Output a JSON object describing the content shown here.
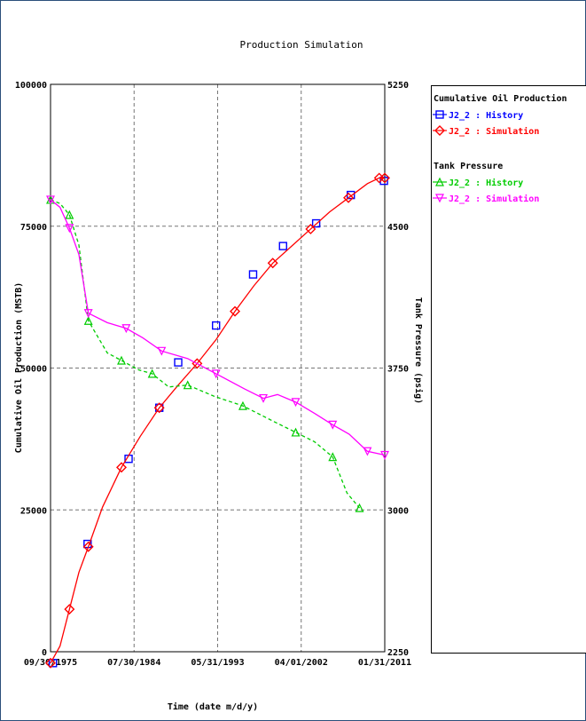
{
  "chart_data": {
    "type": "line",
    "title": "Production Simulation",
    "xlabel": "Time (date m/d/y)",
    "ylabel_left": "Cumulative Oil Production (MSTB)",
    "ylabel_right": "Tank Pressure (psig)",
    "x_range": [
      "1975-09-30",
      "2011-01-31"
    ],
    "x_ticks": [
      "09/30/1975",
      "07/30/1984",
      "05/31/1993",
      "04/01/2002",
      "01/31/2011"
    ],
    "y_left_range": [
      0,
      100000
    ],
    "y_left_ticks": [
      "0",
      "25000",
      "50000",
      "75000",
      "100000"
    ],
    "y_right_range": [
      2250,
      5250
    ],
    "y_right_ticks": [
      "2250",
      "3000",
      "3750",
      "4500",
      "5250"
    ],
    "grid": true,
    "legend": {
      "groups": [
        {
          "title": "Cumulative Oil Production",
          "entries": [
            {
              "label": "J2_2 : History",
              "color": "#0000ff",
              "marker": "square"
            },
            {
              "label": "J2_2 : Simulation",
              "color": "#ff0000",
              "marker": "diamond"
            }
          ]
        },
        {
          "title": "Tank Pressure",
          "entries": [
            {
              "label": "J2_2 : History",
              "color": "#00cc00",
              "marker": "triangle-up"
            },
            {
              "label": "J2_2 : Simulation",
              "color": "#ff00ff",
              "marker": "triangle-down"
            }
          ]
        }
      ]
    },
    "series": [
      {
        "name": "Cumulative Oil Production - J2_2 : History",
        "axis": "left",
        "color": "#0000ff",
        "marker": "square",
        "style": "markers",
        "x": [
          "1975-12-31",
          "1979-08-31",
          "1983-12-31",
          "1987-03-31",
          "1989-03-31",
          "1993-03-31",
          "1997-02-28",
          "2000-04-30",
          "2003-10-31",
          "2007-06-30",
          "2010-12-31"
        ],
        "y": [
          -2000,
          19000,
          34000,
          43000,
          51000,
          57500,
          66500,
          71500,
          75500,
          80500,
          83000
        ]
      },
      {
        "name": "Cumulative Oil Production - J2_2 : Simulation",
        "axis": "left",
        "color": "#ff0000",
        "marker": "diamond",
        "style": "line",
        "x": [
          "1975-09-30",
          "1976-09-30",
          "1977-09-30",
          "1978-09-30",
          "1979-09-30",
          "1981-03-31",
          "1983-03-31",
          "1985-03-31",
          "1987-03-31",
          "1989-03-31",
          "1991-03-31",
          "1993-03-31",
          "1995-03-31",
          "1997-03-31",
          "1999-03-31",
          "2001-03-31",
          "2003-03-31",
          "2005-03-31",
          "2007-03-31",
          "2009-03-31",
          "2010-06-30",
          "2011-01-31"
        ],
        "y": [
          -2000,
          1000,
          7500,
          14000,
          18500,
          25500,
          32500,
          38000,
          43000,
          47000,
          50800,
          55000,
          60000,
          64500,
          68500,
          71500,
          74500,
          77500,
          80000,
          82500,
          83500,
          83500
        ]
      },
      {
        "name": "Tank Pressure - J2_2 : History",
        "axis": "right",
        "color": "#00cc00",
        "marker": "triangle-up",
        "style": "dashed",
        "x": [
          "1975-09-30",
          "1976-09-30",
          "1977-09-30",
          "1978-09-30",
          "1979-09-30",
          "1981-09-30",
          "1983-03-31",
          "1985-01-31",
          "1986-06-30",
          "1988-03-31",
          "1990-03-31",
          "1993-01-31",
          "1996-01-31",
          "1999-03-31",
          "2001-08-31",
          "2003-08-31",
          "2005-07-31",
          "2007-01-31",
          "2008-05-31"
        ],
        "y": [
          4640,
          4620,
          4560,
          4400,
          4000,
          3830,
          3790,
          3740,
          3720,
          3650,
          3660,
          3600,
          3550,
          3470,
          3410,
          3360,
          3280,
          3090,
          3010
        ]
      },
      {
        "name": "Tank Pressure - J2_2 : Simulation",
        "axis": "right",
        "color": "#ff00ff",
        "marker": "triangle-down",
        "style": "line",
        "x": [
          "1975-09-30",
          "1976-09-30",
          "1977-09-30",
          "1978-09-30",
          "1979-09-30",
          "1981-09-30",
          "1983-09-30",
          "1985-06-30",
          "1987-06-30",
          "1990-03-31",
          "1993-03-31",
          "1996-03-31",
          "1998-03-31",
          "1999-09-30",
          "2001-08-31",
          "2003-08-31",
          "2005-07-31",
          "2007-04-30",
          "2009-03-31",
          "2011-01-31"
        ],
        "y": [
          4640,
          4600,
          4490,
          4350,
          4040,
          3990,
          3960,
          3910,
          3840,
          3800,
          3720,
          3640,
          3590,
          3610,
          3570,
          3510,
          3450,
          3400,
          3310,
          3290
        ]
      }
    ]
  }
}
